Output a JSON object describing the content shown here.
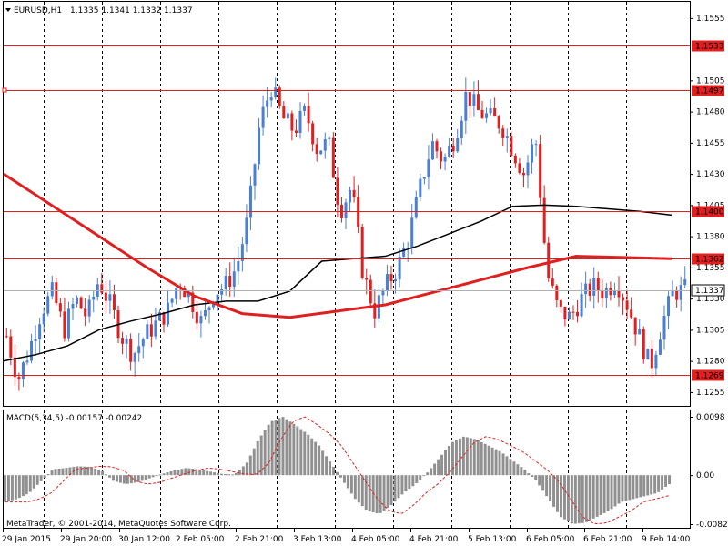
{
  "header": {
    "symbol_timeframe": "EURUSD,H1",
    "ohlc": "1.1335 1.1341 1.1332 1.1337"
  },
  "macd": {
    "label": "MACD(5,34,5) -0.00157 -0.00242",
    "scale_labels": [
      "0.0098",
      "0.00",
      "-0.00822"
    ]
  },
  "copyright": "MetaTrader, © 2001-2014, MetaQuotes Software Corp.",
  "price_axis": {
    "labels": [
      "1.1555",
      "1.1505",
      "1.1480",
      "1.1455",
      "1.1430",
      "1.1405",
      "1.1380",
      "1.1355",
      "1.1330",
      "1.1305",
      "1.1280",
      "1.1255"
    ],
    "hline_labels": [
      "1.1533",
      "1.1497",
      "1.1400",
      "1.1362",
      "1.1269"
    ],
    "current_price": "1.1337"
  },
  "time_axis": {
    "labels": [
      "29 Jan 2015",
      "29 Jan 20:00",
      "30 Jan 12:00",
      "2 Feb 05:00",
      "2 Feb 21:00",
      "3 Feb 13:00",
      "4 Feb 05:00",
      "4 Feb 21:00",
      "5 Feb 13:00",
      "6 Feb 05:00",
      "6 Feb 21:00",
      "9 Feb 14:00"
    ]
  },
  "colors": {
    "bull": "#4a7fd4",
    "bear": "#e02020",
    "hline": "#e02020",
    "ma_slow": "#e02020",
    "ma_fast": "#000000",
    "macd_hist": "#909090",
    "macd_signal": "#e02020",
    "grid": "#000000"
  },
  "chart_data": {
    "type": "candlestick",
    "symbol": "EURUSD",
    "timeframe": "H1",
    "horizontal_levels": [
      1.1533,
      1.1497,
      1.14,
      1.1362,
      1.1269
    ],
    "price_path": [
      1.13,
      1.1265,
      1.129,
      1.132,
      1.1335,
      1.1305,
      1.133,
      1.1315,
      1.1345,
      1.1325,
      1.13,
      1.1285,
      1.13,
      1.131,
      1.132,
      1.1345,
      1.133,
      1.131,
      1.1335,
      1.134,
      1.1355,
      1.1395,
      1.147,
      1.15,
      1.1475,
      1.1465,
      1.148,
      1.145,
      1.1455,
      1.14,
      1.142,
      1.135,
      1.132,
      1.134,
      1.1355,
      1.138,
      1.142,
      1.1455,
      1.144,
      1.146,
      1.1495,
      1.148,
      1.1475,
      1.147,
      1.145,
      1.143,
      1.146,
      1.135,
      1.132,
      1.1315,
      1.133,
      1.134,
      1.1335,
      1.1345,
      1.1325,
      1.13,
      1.1275,
      1.131,
      1.1335,
      1.1337
    ],
    "ma_fast": [
      1.128,
      1.1285,
      1.1292,
      1.1305,
      1.1312,
      1.1318,
      1.1325,
      1.1328,
      1.1328,
      1.1336,
      1.136,
      1.1362,
      1.1364,
      1.1372,
      1.1382,
      1.1392,
      1.1404,
      1.1405,
      1.1404,
      1.1402,
      1.14,
      1.1397
    ],
    "ma_slow": [
      1.143,
      1.1405,
      1.138,
      1.1355,
      1.1332,
      1.1318,
      1.1315,
      1.132,
      1.1325,
      1.1335,
      1.1345,
      1.1355,
      1.1364,
      1.1363,
      1.1362
    ],
    "macd_histogram": [
      -0.0045,
      -0.004,
      -0.003,
      -0.001,
      0.001,
      0.0012,
      0.0015,
      0.0014,
      0.0008,
      -0.001,
      -0.0015,
      -0.0012,
      -0.0005,
      0.0002,
      0.0008,
      0.0012,
      0.001,
      0.0006,
      0.0002,
      0.0001,
      0.002,
      0.006,
      0.009,
      0.0098,
      0.0085,
      0.007,
      0.005,
      0.002,
      -0.001,
      -0.004,
      -0.006,
      -0.0065,
      -0.005,
      -0.003,
      -0.0015,
      0.0005,
      0.003,
      0.0055,
      0.0065,
      0.006,
      0.005,
      0.004,
      0.0025,
      0.001,
      -0.001,
      -0.004,
      -0.007,
      -0.0082,
      -0.008,
      -0.007,
      -0.006,
      -0.0045,
      -0.004,
      -0.0035,
      -0.003,
      -0.0015
    ]
  }
}
